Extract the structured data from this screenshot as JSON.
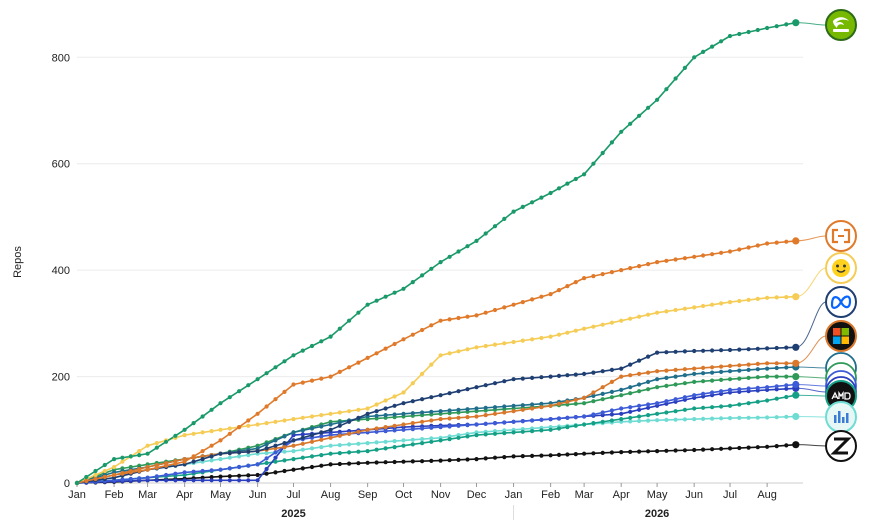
{
  "chart_data": {
    "type": "line",
    "ylabel": "Repos",
    "xlabel": "",
    "ylim": [
      0,
      870
    ],
    "y_ticks": [
      0,
      200,
      400,
      600,
      800
    ],
    "x_range": [
      "2025-01-01",
      "2026-08-31"
    ],
    "x_month_ticks": [
      {
        "date": "2025-01-01",
        "label": "Jan"
      },
      {
        "date": "2025-02-01",
        "label": "Feb"
      },
      {
        "date": "2025-03-01",
        "label": "Mar"
      },
      {
        "date": "2025-04-01",
        "label": "Apr"
      },
      {
        "date": "2025-05-01",
        "label": "May"
      },
      {
        "date": "2025-06-01",
        "label": "Jun"
      },
      {
        "date": "2025-07-01",
        "label": "Jul"
      },
      {
        "date": "2025-08-01",
        "label": "Aug"
      },
      {
        "date": "2025-09-01",
        "label": "Sep"
      },
      {
        "date": "2025-10-01",
        "label": "Oct"
      },
      {
        "date": "2025-11-01",
        "label": "Nov"
      },
      {
        "date": "2025-12-01",
        "label": "Dec"
      },
      {
        "date": "2026-01-01",
        "label": "Jan"
      },
      {
        "date": "2026-02-01",
        "label": "Feb"
      },
      {
        "date": "2026-03-01",
        "label": "Mar"
      },
      {
        "date": "2026-04-01",
        "label": "Apr"
      },
      {
        "date": "2026-05-01",
        "label": "May"
      },
      {
        "date": "2026-06-01",
        "label": "Jun"
      },
      {
        "date": "2026-07-01",
        "label": "Jul"
      },
      {
        "date": "2026-08-01",
        "label": "Aug"
      }
    ],
    "x_year_labels": [
      {
        "date": "2025-07-01",
        "label": "2025"
      },
      {
        "date": "2026-05-01",
        "label": "2026"
      }
    ],
    "grid": {
      "horizontal": true,
      "vertical": false
    },
    "series": [
      {
        "icon": "nvidia-logo-icon",
        "color": "#1a9a6a",
        "x": [
          "2025-01-01",
          "2025-02-01",
          "2025-03-01",
          "2025-04-01",
          "2025-05-01",
          "2025-06-01",
          "2025-07-01",
          "2025-08-01",
          "2025-09-01",
          "2025-10-01",
          "2025-11-01",
          "2025-12-01",
          "2026-01-01",
          "2026-02-01",
          "2026-03-01",
          "2026-04-01",
          "2026-05-01",
          "2026-06-01",
          "2026-07-01",
          "2026-08-01",
          "2026-08-25"
        ],
        "y": [
          0,
          45,
          55,
          100,
          150,
          195,
          240,
          275,
          335,
          365,
          415,
          455,
          510,
          545,
          580,
          660,
          720,
          800,
          840,
          855,
          865
        ]
      },
      {
        "icon": "alibaba-cloud-icon",
        "color": "#e07a2a",
        "x": [
          "2025-01-01",
          "2025-02-01",
          "2025-03-01",
          "2025-04-01",
          "2025-05-01",
          "2025-06-01",
          "2025-07-01",
          "2025-08-01",
          "2025-09-01",
          "2025-10-01",
          "2025-11-01",
          "2025-12-01",
          "2026-01-01",
          "2026-02-01",
          "2026-03-01",
          "2026-04-01",
          "2026-05-01",
          "2026-06-01",
          "2026-07-01",
          "2026-08-01",
          "2026-08-25"
        ],
        "y": [
          0,
          15,
          25,
          40,
          80,
          130,
          185,
          200,
          235,
          270,
          305,
          315,
          335,
          355,
          385,
          400,
          415,
          425,
          435,
          450,
          455
        ]
      },
      {
        "icon": "hugging-face-icon",
        "color": "#f5cc55",
        "x": [
          "2025-01-01",
          "2025-02-01",
          "2025-03-01",
          "2025-04-01",
          "2025-05-01",
          "2025-06-01",
          "2025-07-01",
          "2025-08-01",
          "2025-09-01",
          "2025-10-01",
          "2025-11-01",
          "2025-12-01",
          "2026-01-01",
          "2026-02-01",
          "2026-03-01",
          "2026-04-01",
          "2026-05-01",
          "2026-06-01",
          "2026-07-01",
          "2026-08-01",
          "2026-08-25"
        ],
        "y": [
          0,
          30,
          70,
          90,
          100,
          110,
          120,
          130,
          140,
          170,
          240,
          255,
          265,
          275,
          290,
          305,
          320,
          330,
          340,
          348,
          350
        ]
      },
      {
        "icon": "meta-logo-icon",
        "color": "#1f3f73",
        "x": [
          "2025-01-01",
          "2025-02-01",
          "2025-03-01",
          "2025-04-01",
          "2025-05-01",
          "2025-06-01",
          "2025-07-01",
          "2025-08-01",
          "2025-09-01",
          "2025-10-01",
          "2025-11-01",
          "2025-12-01",
          "2026-01-01",
          "2026-02-01",
          "2026-03-01",
          "2026-04-01",
          "2026-05-01",
          "2026-06-01",
          "2026-07-01",
          "2026-08-01",
          "2026-08-25"
        ],
        "y": [
          0,
          10,
          25,
          35,
          55,
          60,
          80,
          100,
          130,
          150,
          165,
          180,
          195,
          200,
          205,
          215,
          245,
          248,
          250,
          253,
          255
        ]
      },
      {
        "icon": "microsoft-logo-icon",
        "color": "#d9772b",
        "x": [
          "2025-01-01",
          "2025-02-01",
          "2025-03-01",
          "2025-04-01",
          "2025-05-01",
          "2025-06-01",
          "2025-07-01",
          "2025-08-01",
          "2025-09-01",
          "2025-10-01",
          "2025-11-01",
          "2025-12-01",
          "2026-01-01",
          "2026-02-01",
          "2026-03-01",
          "2026-04-01",
          "2026-05-01",
          "2026-06-01",
          "2026-07-01",
          "2026-08-01",
          "2026-08-25"
        ],
        "y": [
          0,
          15,
          30,
          45,
          55,
          60,
          70,
          85,
          100,
          110,
          120,
          125,
          135,
          145,
          160,
          200,
          210,
          215,
          220,
          225,
          225
        ]
      },
      {
        "icon": "ibm-logo-icon",
        "color": "#1f6e8c",
        "x": [
          "2025-01-01",
          "2025-02-01",
          "2025-03-01",
          "2025-04-01",
          "2025-05-01",
          "2025-06-01",
          "2025-07-01",
          "2025-08-01",
          "2025-09-01",
          "2025-10-01",
          "2025-11-01",
          "2025-12-01",
          "2026-01-01",
          "2026-02-01",
          "2026-03-01",
          "2026-04-01",
          "2026-05-01",
          "2026-06-01",
          "2026-07-01",
          "2026-08-01",
          "2026-08-25"
        ],
        "y": [
          0,
          20,
          30,
          45,
          55,
          65,
          95,
          110,
          125,
          130,
          135,
          140,
          145,
          150,
          160,
          175,
          195,
          205,
          210,
          215,
          218
        ]
      },
      {
        "icon": "google-logo-icon",
        "color": "#2f9a58",
        "x": [
          "2025-01-01",
          "2025-02-01",
          "2025-03-01",
          "2025-04-01",
          "2025-05-01",
          "2025-06-01",
          "2025-07-01",
          "2025-08-01",
          "2025-09-01",
          "2025-10-01",
          "2025-11-01",
          "2025-12-01",
          "2026-01-01",
          "2026-02-01",
          "2026-03-01",
          "2026-04-01",
          "2026-05-01",
          "2026-06-01",
          "2026-07-01",
          "2026-08-01",
          "2026-08-25"
        ],
        "y": [
          0,
          25,
          35,
          45,
          55,
          70,
          95,
          115,
          120,
          125,
          130,
          135,
          140,
          145,
          150,
          165,
          180,
          190,
          195,
          200,
          200
        ]
      },
      {
        "icon": "deepseek-logo-icon",
        "color": "#3d5bd6",
        "x": [
          "2025-01-01",
          "2025-02-01",
          "2025-03-01",
          "2025-04-01",
          "2025-05-01",
          "2025-06-01",
          "2025-07-01",
          "2025-08-01",
          "2025-09-01",
          "2025-10-01",
          "2025-11-01",
          "2025-12-01",
          "2026-01-01",
          "2026-02-01",
          "2026-03-01",
          "2026-04-01",
          "2026-05-01",
          "2026-06-01",
          "2026-07-01",
          "2026-08-01",
          "2026-08-25"
        ],
        "y": [
          0,
          5,
          10,
          20,
          25,
          35,
          80,
          90,
          95,
          100,
          105,
          110,
          115,
          120,
          125,
          140,
          150,
          165,
          175,
          180,
          185
        ]
      },
      {
        "icon": "mistral-logo-icon",
        "color": "#2a3fbf",
        "x": [
          "2025-01-01",
          "2025-02-01",
          "2025-03-01",
          "2025-04-01",
          "2025-05-01",
          "2025-06-01",
          "2025-07-01",
          "2025-08-01",
          "2025-09-01",
          "2025-10-01",
          "2025-11-01",
          "2025-12-01",
          "2026-01-01",
          "2026-02-01",
          "2026-03-01",
          "2026-04-01",
          "2026-05-01",
          "2026-06-01",
          "2026-07-01",
          "2026-08-01",
          "2026-08-25"
        ],
        "y": [
          0,
          3,
          5,
          5,
          5,
          5,
          90,
          95,
          100,
          105,
          108,
          110,
          115,
          120,
          125,
          130,
          145,
          160,
          170,
          175,
          178
        ]
      },
      {
        "icon": "amd-logo-icon",
        "color": "#14a086",
        "x": [
          "2025-01-01",
          "2025-02-01",
          "2025-03-01",
          "2025-04-01",
          "2025-05-01",
          "2025-06-01",
          "2025-07-01",
          "2025-08-01",
          "2025-09-01",
          "2025-10-01",
          "2025-11-01",
          "2025-12-01",
          "2026-01-01",
          "2026-02-01",
          "2026-03-01",
          "2026-04-01",
          "2026-05-01",
          "2026-06-01",
          "2026-07-01",
          "2026-08-01",
          "2026-08-25"
        ],
        "y": [
          0,
          5,
          10,
          15,
          25,
          35,
          45,
          55,
          60,
          70,
          80,
          90,
          95,
          100,
          110,
          120,
          130,
          140,
          145,
          155,
          165
        ]
      },
      {
        "icon": "bar-logo-icon",
        "color": "#6fdcd4",
        "x": [
          "2025-01-01",
          "2025-02-01",
          "2025-03-01",
          "2025-04-01",
          "2025-05-01",
          "2025-06-01",
          "2025-07-01",
          "2025-08-01",
          "2025-09-01",
          "2025-10-01",
          "2025-11-01",
          "2025-12-01",
          "2026-01-01",
          "2026-02-01",
          "2026-03-01",
          "2026-04-01",
          "2026-05-01",
          "2026-06-01",
          "2026-07-01",
          "2026-08-01",
          "2026-08-25"
        ],
        "y": [
          0,
          15,
          25,
          35,
          45,
          55,
          60,
          70,
          75,
          80,
          85,
          95,
          100,
          105,
          110,
          115,
          118,
          120,
          122,
          123,
          125
        ]
      },
      {
        "icon": "zhipu-logo-icon",
        "color": "#111111",
        "x": [
          "2025-01-01",
          "2025-02-01",
          "2025-03-01",
          "2025-04-01",
          "2025-05-01",
          "2025-06-01",
          "2025-07-01",
          "2025-08-01",
          "2025-09-01",
          "2025-10-01",
          "2025-11-01",
          "2025-12-01",
          "2026-01-01",
          "2026-02-01",
          "2026-03-01",
          "2026-04-01",
          "2026-05-01",
          "2026-06-01",
          "2026-07-01",
          "2026-08-01",
          "2026-08-25"
        ],
        "y": [
          0,
          2,
          5,
          8,
          12,
          15,
          25,
          35,
          38,
          40,
          42,
          45,
          50,
          52,
          55,
          58,
          60,
          62,
          65,
          68,
          72
        ]
      }
    ]
  }
}
